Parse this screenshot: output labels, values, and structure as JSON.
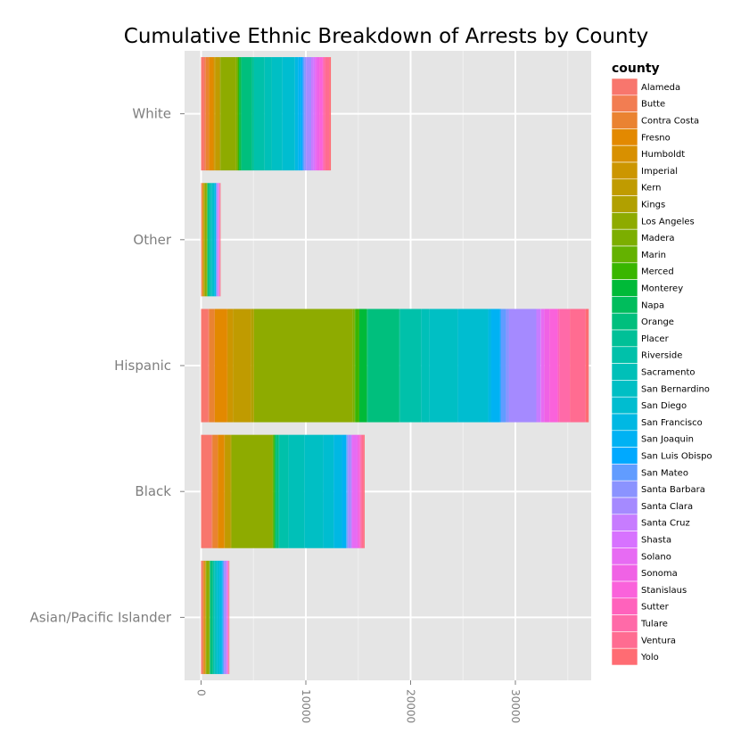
{
  "chart_data": {
    "type": "bar",
    "orientation": "horizontal",
    "stacked": true,
    "title": "Cumulative Ethnic Breakdown of Arrests by County",
    "xlabel": "",
    "ylabel": "",
    "xlim": [
      0,
      37000
    ],
    "xticks": [
      0,
      10000,
      20000,
      30000
    ],
    "xtick_labels": [
      "0",
      "10000",
      "20000",
      "30000"
    ],
    "grid": true,
    "legend_position": "right",
    "legend_title": "county",
    "categories": [
      "White",
      "Other",
      "Hispanic",
      "Black",
      "Asian/Pacific Islander"
    ],
    "series": [
      {
        "name": "Alameda",
        "color": "#F8766D",
        "values": [
          300,
          50,
          700,
          1000,
          150
        ]
      },
      {
        "name": "Butte",
        "color": "#F27D52",
        "values": [
          150,
          20,
          100,
          100,
          20
        ]
      },
      {
        "name": "Contra Costa",
        "color": "#EA8331",
        "values": [
          300,
          50,
          500,
          500,
          100
        ]
      },
      {
        "name": "Fresno",
        "color": "#E38900",
        "values": [
          400,
          80,
          1200,
          600,
          100
        ]
      },
      {
        "name": "Humboldt",
        "color": "#D89000",
        "values": [
          100,
          20,
          50,
          50,
          20
        ]
      },
      {
        "name": "Imperial",
        "color": "#CC9600",
        "values": [
          100,
          20,
          500,
          50,
          20
        ]
      },
      {
        "name": "Kern",
        "color": "#C09B00",
        "values": [
          400,
          80,
          1700,
          500,
          50
        ]
      },
      {
        "name": "Kings",
        "color": "#B1A000",
        "values": [
          100,
          20,
          300,
          100,
          20
        ]
      },
      {
        "name": "Los Angeles",
        "color": "#8EAB00",
        "values": [
          1500,
          200,
          9400,
          3900,
          300
        ]
      },
      {
        "name": "Madera",
        "color": "#7CAE00",
        "values": [
          100,
          20,
          200,
          50,
          20
        ]
      },
      {
        "name": "Marin",
        "color": "#64B200",
        "values": [
          80,
          20,
          50,
          50,
          20
        ]
      },
      {
        "name": "Merced",
        "color": "#39B600",
        "values": [
          100,
          20,
          400,
          100,
          20
        ]
      },
      {
        "name": "Monterey",
        "color": "#00BA38",
        "values": [
          150,
          20,
          700,
          100,
          20
        ]
      },
      {
        "name": "Napa",
        "color": "#00BD5C",
        "values": [
          80,
          20,
          100,
          20,
          20
        ]
      },
      {
        "name": "Orange",
        "color": "#00BF7D",
        "values": [
          1000,
          150,
          3000,
          300,
          250
        ]
      },
      {
        "name": "Placer",
        "color": "#00C097",
        "values": [
          200,
          20,
          100,
          30,
          20
        ]
      },
      {
        "name": "Riverside",
        "color": "#00C1AA",
        "values": [
          1000,
          100,
          2000,
          900,
          100
        ]
      },
      {
        "name": "Sacramento",
        "color": "#00C0B8",
        "values": [
          700,
          100,
          800,
          1500,
          150
        ]
      },
      {
        "name": "San Bernardino",
        "color": "#00BFC4",
        "values": [
          1000,
          100,
          2700,
          1800,
          100
        ]
      },
      {
        "name": "San Diego",
        "color": "#00BDD0",
        "values": [
          1200,
          150,
          2900,
          1000,
          250
        ]
      },
      {
        "name": "San Francisco",
        "color": "#00B8E3",
        "values": [
          300,
          100,
          300,
          800,
          200
        ]
      },
      {
        "name": "San Joaquin",
        "color": "#00B2F3",
        "values": [
          300,
          50,
          800,
          400,
          100
        ]
      },
      {
        "name": "San Luis Obispo",
        "color": "#00A9FF",
        "values": [
          150,
          20,
          100,
          30,
          20
        ]
      },
      {
        "name": "San Mateo",
        "color": "#619CFF",
        "values": [
          150,
          50,
          500,
          100,
          100
        ]
      },
      {
        "name": "Santa Barbara",
        "color": "#8B93FF",
        "values": [
          150,
          20,
          300,
          50,
          30
        ]
      },
      {
        "name": "Santa Clara",
        "color": "#A58AFF",
        "values": [
          500,
          100,
          2600,
          300,
          200
        ]
      },
      {
        "name": "Santa Cruz",
        "color": "#C77CFF",
        "values": [
          200,
          20,
          400,
          50,
          20
        ]
      },
      {
        "name": "Shasta",
        "color": "#D772FF",
        "values": [
          150,
          20,
          50,
          50,
          20
        ]
      },
      {
        "name": "Solano",
        "color": "#E76BF3",
        "values": [
          200,
          50,
          300,
          500,
          80
        ]
      },
      {
        "name": "Sonoma",
        "color": "#F062E5",
        "values": [
          250,
          30,
          500,
          100,
          30
        ]
      },
      {
        "name": "Stanislaus",
        "color": "#FA62DB",
        "values": [
          300,
          30,
          800,
          150,
          30
        ]
      },
      {
        "name": "Sutter",
        "color": "#FF62BC",
        "values": [
          80,
          20,
          150,
          30,
          20
        ]
      },
      {
        "name": "Tulare",
        "color": "#FF6AA8",
        "values": [
          150,
          30,
          1000,
          100,
          20
        ]
      },
      {
        "name": "Ventura",
        "color": "#FF6C91",
        "values": [
          400,
          50,
          1500,
          200,
          50
        ]
      },
      {
        "name": "Yolo",
        "color": "#FF6C73",
        "values": [
          150,
          20,
          300,
          100,
          30
        ]
      }
    ]
  }
}
